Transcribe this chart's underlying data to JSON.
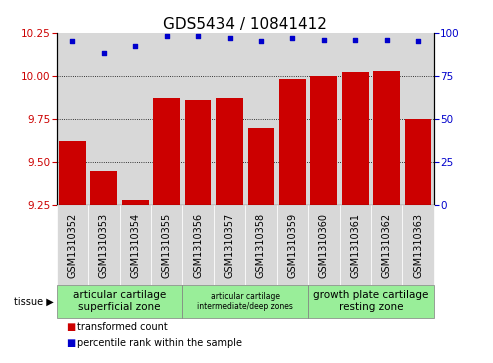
{
  "title": "GDS5434 / 10841412",
  "samples": [
    "GSM1310352",
    "GSM1310353",
    "GSM1310354",
    "GSM1310355",
    "GSM1310356",
    "GSM1310357",
    "GSM1310358",
    "GSM1310359",
    "GSM1310360",
    "GSM1310361",
    "GSM1310362",
    "GSM1310363"
  ],
  "bar_values": [
    9.62,
    9.45,
    9.28,
    9.87,
    9.86,
    9.87,
    9.7,
    9.98,
    10.0,
    10.02,
    10.03,
    9.75
  ],
  "dot_values": [
    95,
    88,
    92,
    98,
    98,
    97,
    95,
    97,
    96,
    96,
    96,
    95
  ],
  "ylim_left": [
    9.25,
    10.25
  ],
  "ylim_right": [
    0,
    100
  ],
  "yticks_left": [
    9.25,
    9.5,
    9.75,
    10.0,
    10.25
  ],
  "yticks_right": [
    0,
    25,
    50,
    75,
    100
  ],
  "bar_color": "#cc0000",
  "dot_color": "#0000cc",
  "bar_bottom": 9.25,
  "tissue_groups": [
    {
      "label": "articular cartilage\nsuperficial zone",
      "start": 0,
      "end": 4,
      "fontsize": 7.5
    },
    {
      "label": "articular cartilage\nintermediate/deep zones",
      "start": 4,
      "end": 8,
      "fontsize": 5.5
    },
    {
      "label": "growth plate cartilage\nresting zone",
      "start": 8,
      "end": 12,
      "fontsize": 7.5
    }
  ],
  "legend_bar_label": "transformed count",
  "legend_dot_label": "percentile rank within the sample",
  "tissue_label": "tissue",
  "col_bg_color": "#d8d8d8",
  "plot_bg": "#ffffff",
  "tissue_bg": "#99ee99",
  "grid_color": "#000000",
  "title_fontsize": 11,
  "tick_fontsize": 7.5,
  "sample_fontsize": 7
}
